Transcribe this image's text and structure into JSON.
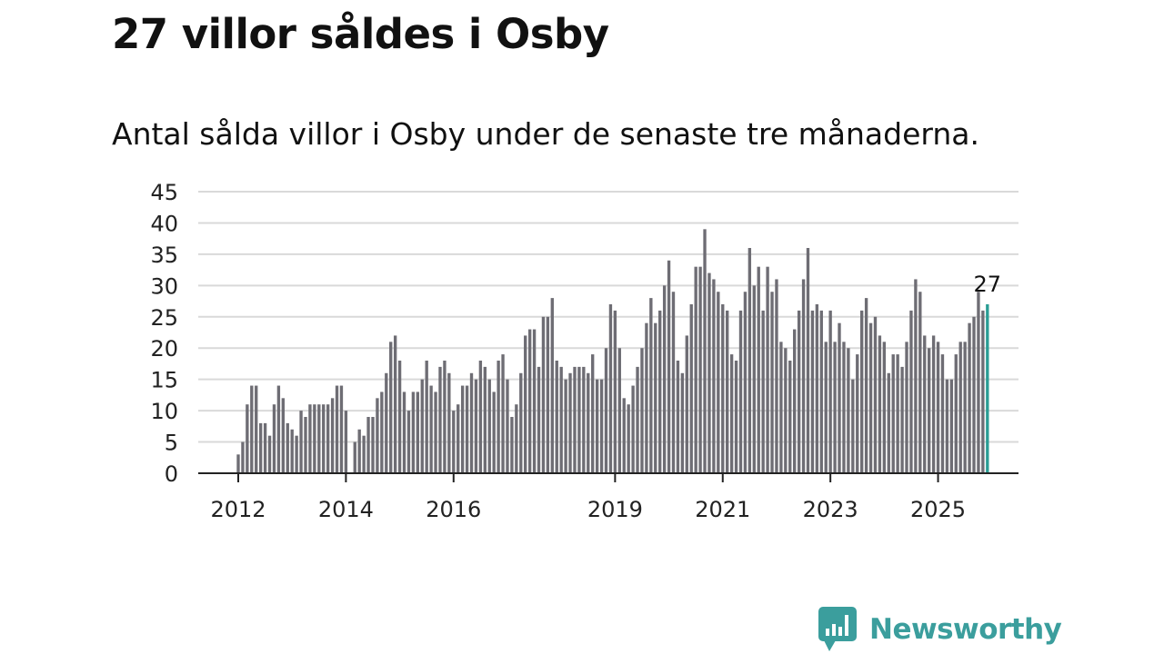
{
  "title": "27 villor såldes i Osby",
  "subtitle": "Antal sålda villor i Osby under de senaste tre månaderna.",
  "brand": {
    "name": "Newsworthy",
    "color": "#3b9e9d"
  },
  "colors": {
    "bar": "#6e6d74",
    "highlight": "#2a9d94",
    "grid": "#d9d9d9",
    "axis": "#222222",
    "text": "#222222"
  },
  "chart_data": {
    "type": "bar",
    "title": "27 villor såldes i Osby",
    "subtitle": "Antal sålda villor i Osby under de senaste tre månaderna.",
    "xlabel": "",
    "ylabel": "",
    "ylim": [
      0,
      45
    ],
    "y_ticks": [
      0,
      5,
      10,
      15,
      20,
      25,
      30,
      35,
      40,
      45
    ],
    "x_range_months": [
      0,
      174
    ],
    "first_bar_month": 0,
    "x_ticks": [
      {
        "label": "2012",
        "month": 0
      },
      {
        "label": "2014",
        "month": 24
      },
      {
        "label": "2016",
        "month": 48
      },
      {
        "label": "2019",
        "month": 84
      },
      {
        "label": "2021",
        "month": 108
      },
      {
        "label": "2023",
        "month": 132
      },
      {
        "label": "2025",
        "month": 156
      }
    ],
    "grid": true,
    "highlight_label": "27",
    "values": [
      3,
      5,
      11,
      14,
      14,
      8,
      8,
      6,
      11,
      14,
      12,
      8,
      7,
      6,
      10,
      9,
      11,
      11,
      11,
      11,
      11,
      12,
      14,
      14,
      10,
      0,
      5,
      7,
      6,
      9,
      9,
      12,
      13,
      16,
      21,
      22,
      18,
      13,
      10,
      13,
      13,
      15,
      18,
      14,
      13,
      17,
      18,
      16,
      10,
      11,
      14,
      14,
      16,
      15,
      18,
      17,
      15,
      13,
      18,
      19,
      15,
      9,
      11,
      16,
      22,
      23,
      23,
      17,
      25,
      25,
      28,
      18,
      17,
      15,
      16,
      17,
      17,
      17,
      16,
      19,
      15,
      15,
      20,
      27,
      26,
      20,
      12,
      11,
      14,
      17,
      20,
      24,
      28,
      24,
      26,
      30,
      34,
      29,
      18,
      16,
      22,
      27,
      33,
      33,
      39,
      32,
      31,
      29,
      27,
      26,
      19,
      18,
      26,
      29,
      36,
      30,
      33,
      26,
      33,
      29,
      31,
      21,
      20,
      18,
      23,
      26,
      31,
      36,
      26,
      27,
      26,
      21,
      26,
      21,
      24,
      21,
      20,
      15,
      19,
      26,
      28,
      24,
      25,
      22,
      21,
      16,
      19,
      19,
      17,
      21,
      26,
      31,
      29,
      22,
      20,
      22,
      21,
      19,
      15,
      15,
      19,
      21,
      21,
      24,
      25,
      29,
      26,
      27
    ]
  }
}
